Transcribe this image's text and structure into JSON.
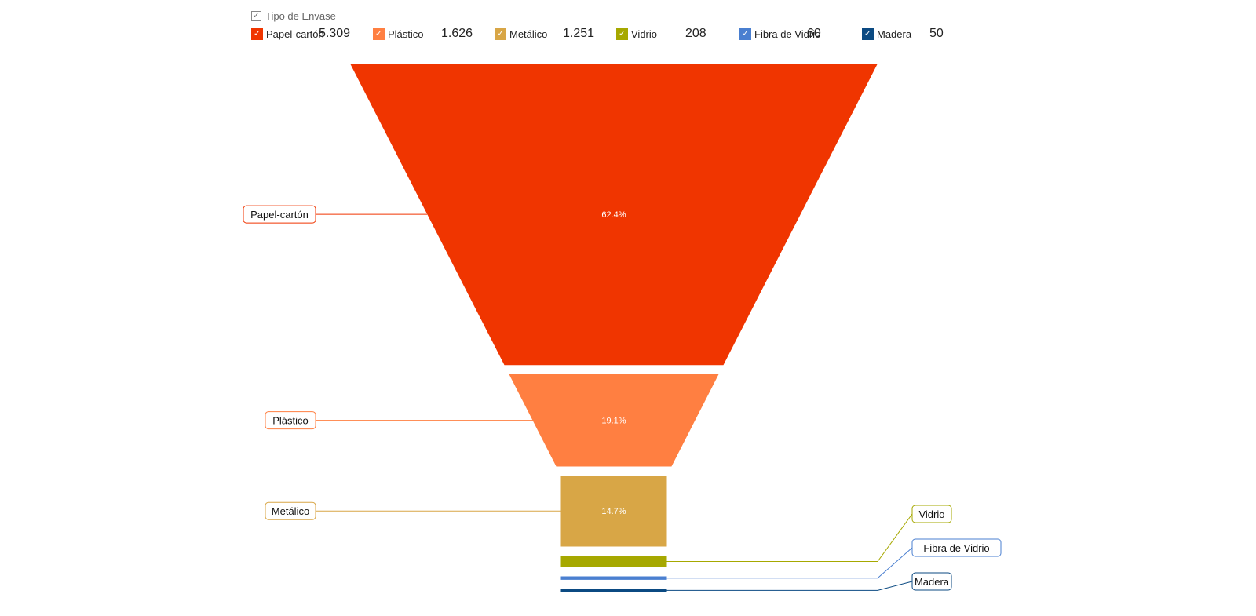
{
  "legend": {
    "title": "Tipo de Envase",
    "check_mark": "✓"
  },
  "chart_data": {
    "type": "funnel",
    "categories": [
      "Papel-cartón",
      "Plástico",
      "Metálico",
      "Vidrio",
      "Fibra de Vidrio",
      "Madera"
    ],
    "values": [
      5309,
      1626,
      1251,
      208,
      60,
      50
    ],
    "value_labels": [
      "5.309",
      "1.626",
      "1.251",
      "208",
      "60",
      "50"
    ],
    "percent_labels": [
      "62.4%",
      "19.1%",
      "14.7%",
      "",
      "",
      ""
    ],
    "colors": [
      "#f03500",
      "#ff7f41",
      "#d8a646",
      "#a6a800",
      "#4a7fd0",
      "#0b4a82"
    ],
    "label_positions": [
      "left",
      "left",
      "left",
      "right",
      "right",
      "right"
    ],
    "legend_placement": "top"
  }
}
